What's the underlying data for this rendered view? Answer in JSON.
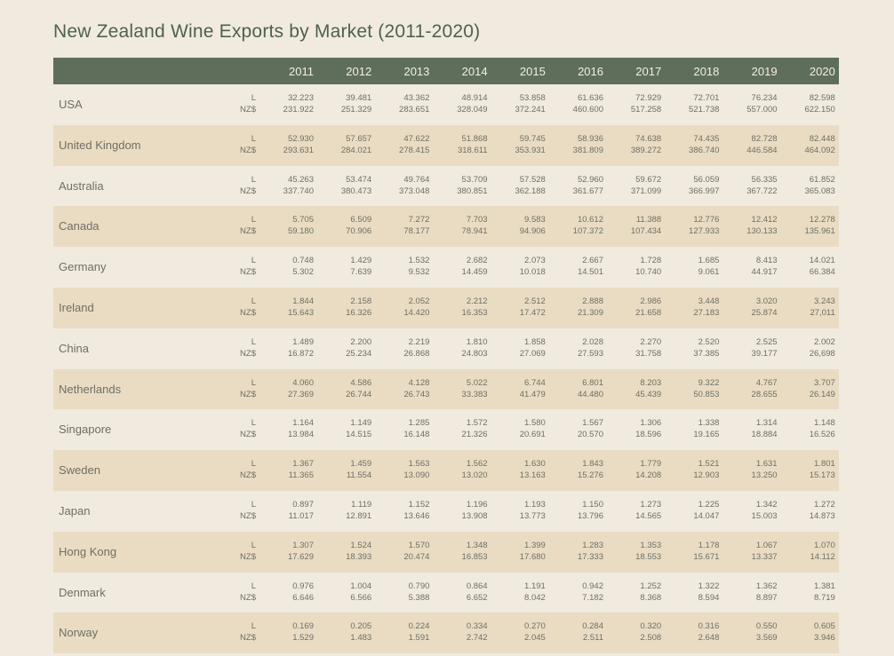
{
  "title": "New Zealand Wine Exports by Market (2011-2020)",
  "chart_data": {
    "type": "table",
    "title": "New Zealand Wine Exports by Market (2011-2020)",
    "years": [
      "2011",
      "2012",
      "2013",
      "2014",
      "2015",
      "2016",
      "2017",
      "2018",
      "2019",
      "2020"
    ],
    "units": [
      "L",
      "NZ$"
    ],
    "colors": {
      "header": "#5e6e5a",
      "alt_row": "#e9dcc3",
      "background": "#f1eadf",
      "title": "#4f6150"
    },
    "rows": [
      {
        "market": "USA",
        "L": [
          "32.223",
          "39.481",
          "43.362",
          "48.914",
          "53.858",
          "61.636",
          "72.929",
          "72.701",
          "76.234",
          "82.598"
        ],
        "NZD": [
          "231.922",
          "251.329",
          "283.651",
          "328.049",
          "372.241",
          "460.600",
          "517.258",
          "521.738",
          "557.000",
          "622.150"
        ]
      },
      {
        "market": "United Kingdom",
        "L": [
          "52.930",
          "57.657",
          "47.622",
          "51.868",
          "59.745",
          "58.936",
          "74.638",
          "74.435",
          "82.728",
          "82.448"
        ],
        "NZD": [
          "293.631",
          "284.021",
          "278.415",
          "318.611",
          "353.931",
          "381.809",
          "389.272",
          "386.740",
          "446.584",
          "464.092"
        ]
      },
      {
        "market": "Australia",
        "L": [
          "45.263",
          "53.474",
          "49.764",
          "53.709",
          "57.528",
          "52.960",
          "59.672",
          "56.059",
          "56.335",
          "61.852"
        ],
        "NZD": [
          "337.740",
          "380.473",
          "373.048",
          "380.851",
          "362.188",
          "361.677",
          "371.099",
          "366.997",
          "367.722",
          "365.083"
        ]
      },
      {
        "market": "Canada",
        "L": [
          "5.705",
          "6.509",
          "7.272",
          "7.703",
          "9.583",
          "10.612",
          "11.388",
          "12.776",
          "12.412",
          "12.278"
        ],
        "NZD": [
          "59.180",
          "70.906",
          "78.177",
          "78.941",
          "94.906",
          "107.372",
          "107.434",
          "127.933",
          "130.133",
          "135.961"
        ]
      },
      {
        "market": "Germany",
        "L": [
          "0.748",
          "1.429",
          "1.532",
          "2.682",
          "2.073",
          "2.667",
          "1.728",
          "1.685",
          "8.413",
          "14.021"
        ],
        "NZD": [
          "5.302",
          "7.639",
          "9.532",
          "14.459",
          "10.018",
          "14.501",
          "10.740",
          "9.061",
          "44.917",
          "66.384"
        ]
      },
      {
        "market": "Ireland",
        "L": [
          "1.844",
          "2.158",
          "2.052",
          "2.212",
          "2.512",
          "2.888",
          "2.986",
          "3.448",
          "3.020",
          "3.243"
        ],
        "NZD": [
          "15.643",
          "16.326",
          "14.420",
          "16.353",
          "17.472",
          "21.309",
          "21.658",
          "27.183",
          "25.874",
          "27,011"
        ]
      },
      {
        "market": "China",
        "L": [
          "1.489",
          "2.200",
          "2.219",
          "1.810",
          "1.858",
          "2.028",
          "2.270",
          "2.520",
          "2.525",
          "2.002"
        ],
        "NZD": [
          "16.872",
          "25.234",
          "26.868",
          "24.803",
          "27.069",
          "27.593",
          "31.758",
          "37.385",
          "39.177",
          "26,698"
        ]
      },
      {
        "market": "Netherlands",
        "L": [
          "4.060",
          "4.586",
          "4.128",
          "5.022",
          "6.744",
          "6.801",
          "8.203",
          "9.322",
          "4.767",
          "3.707"
        ],
        "NZD": [
          "27.369",
          "26.744",
          "26.743",
          "33.383",
          "41.479",
          "44.480",
          "45.439",
          "50.853",
          "28.655",
          "26.149"
        ]
      },
      {
        "market": "Singapore",
        "L": [
          "1.164",
          "1.149",
          "1.285",
          "1.572",
          "1.580",
          "1.567",
          "1.306",
          "1.338",
          "1.314",
          "1.148"
        ],
        "NZD": [
          "13.984",
          "14.515",
          "16.148",
          "21.326",
          "20.691",
          "20.570",
          "18.596",
          "19.165",
          "18.884",
          "16.526"
        ]
      },
      {
        "market": "Sweden",
        "L": [
          "1.367",
          "1.459",
          "1.563",
          "1.562",
          "1.630",
          "1.843",
          "1.779",
          "1.521",
          "1.631",
          "1.801"
        ],
        "NZD": [
          "11.365",
          "11.554",
          "13.090",
          "13.020",
          "13.163",
          "15.276",
          "14.208",
          "12.903",
          "13.250",
          "15.173"
        ]
      },
      {
        "market": "Japan",
        "L": [
          "0.897",
          "1.119",
          "1.152",
          "1.196",
          "1.193",
          "1.150",
          "1.273",
          "1.225",
          "1.342",
          "1.272"
        ],
        "NZD": [
          "11.017",
          "12.891",
          "13.646",
          "13.908",
          "13.773",
          "13.796",
          "14.565",
          "14.047",
          "15.003",
          "14.873"
        ]
      },
      {
        "market": "Hong Kong",
        "L": [
          "1.307",
          "1.524",
          "1.570",
          "1.348",
          "1.399",
          "1.283",
          "1.353",
          "1.178",
          "1.067",
          "1.070"
        ],
        "NZD": [
          "17.629",
          "18.393",
          "20.474",
          "16.853",
          "17.680",
          "17.333",
          "18.553",
          "15.671",
          "13.337",
          "14.112"
        ]
      },
      {
        "market": "Denmark",
        "L": [
          "0.976",
          "1.004",
          "0.790",
          "0.864",
          "1.191",
          "0.942",
          "1.252",
          "1.322",
          "1.362",
          "1.381"
        ],
        "NZD": [
          "6.646",
          "6.566",
          "5.388",
          "6.652",
          "8.042",
          "7.182",
          "8.368",
          "8.594",
          "8.897",
          "8.719"
        ]
      },
      {
        "market": "Norway",
        "L": [
          "0.169",
          "0.205",
          "0.224",
          "0.334",
          "0.270",
          "0.284",
          "0.320",
          "0.316",
          "0.550",
          "0.605"
        ],
        "NZD": [
          "1.529",
          "1.483",
          "1.591",
          "2.742",
          "2.045",
          "2.511",
          "2.508",
          "2.648",
          "3.569",
          "3.946"
        ]
      }
    ]
  }
}
